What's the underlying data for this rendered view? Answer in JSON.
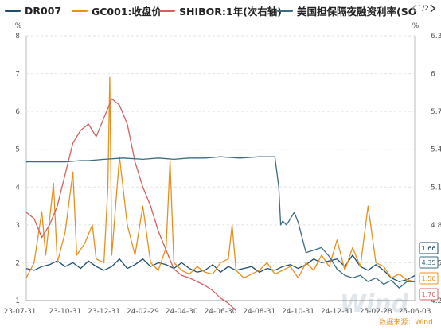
{
  "legend": {
    "items": [
      {
        "label": "DR007",
        "color": "#1d4e70"
      },
      {
        "label": "GC001:收盘价",
        "color": "#e8901e"
      },
      {
        "label": "SHIBOR:1年(次右轴)",
        "color": "#d46060"
      },
      {
        "label": "美国担保隔夜融资利率(SO",
        "color": "#3a6b80"
      }
    ],
    "page": "1/2"
  },
  "source": "数据来源：Wind",
  "colors": {
    "dr007": "#1d4e70",
    "gc001": "#e8901e",
    "shibor": "#d46060",
    "sofr": "#3a6b80"
  },
  "chart_data": {
    "type": "line",
    "left_axis": {
      "unit": "%",
      "ticks": [
        "8",
        "7",
        "6",
        "5",
        "4",
        "3",
        "2",
        "1"
      ],
      "ylim": [
        1,
        8
      ]
    },
    "right_axis": {
      "unit": "%",
      "ticks": [
        "6.3",
        "6",
        "5.7",
        "5.4",
        "5.1",
        "4.8",
        "4.5",
        "4.2"
      ],
      "ylim": [
        4.2,
        6.3
      ]
    },
    "x_ticks": [
      "23-07-31",
      "23-10-31",
      "23-12-31",
      "24-02-29",
      "24-04-30",
      "24-06-30",
      "24-08-31",
      "24-10-31",
      "24-12-31",
      "25-02-28",
      "25-06-03"
    ],
    "end_labels": [
      {
        "text": "1.66",
        "color": "#1d4e70"
      },
      {
        "text": "4.35",
        "color": "#3a6b80"
      },
      {
        "text": "1.50",
        "color": "#e8901e"
      },
      {
        "text": "1.70",
        "color": "#d46060"
      }
    ],
    "series": [
      {
        "name": "DR007",
        "axis": "left",
        "points": [
          [
            0,
            1.85
          ],
          [
            0.02,
            1.8
          ],
          [
            0.04,
            1.9
          ],
          [
            0.06,
            1.95
          ],
          [
            0.08,
            2.05
          ],
          [
            0.1,
            1.9
          ],
          [
            0.12,
            2.0
          ],
          [
            0.14,
            1.85
          ],
          [
            0.16,
            2.05
          ],
          [
            0.18,
            1.9
          ],
          [
            0.2,
            1.8
          ],
          [
            0.22,
            1.9
          ],
          [
            0.24,
            2.1
          ],
          [
            0.26,
            1.85
          ],
          [
            0.28,
            1.95
          ],
          [
            0.3,
            2.1
          ],
          [
            0.32,
            1.9
          ],
          [
            0.34,
            2.0
          ],
          [
            0.36,
            1.95
          ],
          [
            0.38,
            1.85
          ],
          [
            0.4,
            2.0
          ],
          [
            0.42,
            1.85
          ],
          [
            0.44,
            1.75
          ],
          [
            0.46,
            1.8
          ],
          [
            0.48,
            1.95
          ],
          [
            0.5,
            1.75
          ],
          [
            0.52,
            1.9
          ],
          [
            0.54,
            1.8
          ],
          [
            0.56,
            1.85
          ],
          [
            0.58,
            1.9
          ],
          [
            0.6,
            1.75
          ],
          [
            0.62,
            1.85
          ],
          [
            0.64,
            1.8
          ],
          [
            0.66,
            1.9
          ],
          [
            0.68,
            1.95
          ],
          [
            0.7,
            1.85
          ],
          [
            0.72,
            1.95
          ],
          [
            0.74,
            2.1
          ],
          [
            0.76,
            2.0
          ],
          [
            0.78,
            2.05
          ],
          [
            0.8,
            2.1
          ],
          [
            0.82,
            1.9
          ],
          [
            0.84,
            2.2
          ],
          [
            0.86,
            1.9
          ],
          [
            0.88,
            1.8
          ],
          [
            0.9,
            1.95
          ],
          [
            0.92,
            1.8
          ],
          [
            0.94,
            1.6
          ],
          [
            0.96,
            1.5
          ],
          [
            0.98,
            1.55
          ],
          [
            1.0,
            1.66
          ]
        ]
      },
      {
        "name": "GC001:收盘价",
        "axis": "left",
        "points": [
          [
            0,
            1.6
          ],
          [
            0.02,
            2.0
          ],
          [
            0.04,
            3.35
          ],
          [
            0.05,
            2.2
          ],
          [
            0.07,
            4.1
          ],
          [
            0.08,
            2.0
          ],
          [
            0.1,
            2.8
          ],
          [
            0.12,
            4.4
          ],
          [
            0.13,
            2.2
          ],
          [
            0.15,
            2.5
          ],
          [
            0.17,
            3.0
          ],
          [
            0.18,
            2.1
          ],
          [
            0.2,
            2.0
          ],
          [
            0.21,
            4.0
          ],
          [
            0.215,
            6.9
          ],
          [
            0.22,
            2.2
          ],
          [
            0.24,
            4.8
          ],
          [
            0.26,
            3.0
          ],
          [
            0.28,
            2.2
          ],
          [
            0.3,
            3.5
          ],
          [
            0.32,
            2.0
          ],
          [
            0.34,
            1.8
          ],
          [
            0.36,
            2.4
          ],
          [
            0.37,
            4.7
          ],
          [
            0.38,
            2.0
          ],
          [
            0.4,
            1.8
          ],
          [
            0.42,
            1.7
          ],
          [
            0.44,
            1.9
          ],
          [
            0.46,
            1.75
          ],
          [
            0.48,
            1.7
          ],
          [
            0.5,
            2.0
          ],
          [
            0.52,
            2.1
          ],
          [
            0.53,
            3.0
          ],
          [
            0.54,
            1.8
          ],
          [
            0.56,
            1.6
          ],
          [
            0.58,
            1.7
          ],
          [
            0.6,
            1.8
          ],
          [
            0.62,
            2.0
          ],
          [
            0.64,
            1.7
          ],
          [
            0.66,
            1.8
          ],
          [
            0.68,
            1.9
          ],
          [
            0.7,
            1.6
          ],
          [
            0.72,
            2.0
          ],
          [
            0.74,
            1.8
          ],
          [
            0.76,
            2.2
          ],
          [
            0.78,
            1.9
          ],
          [
            0.8,
            2.6
          ],
          [
            0.82,
            1.8
          ],
          [
            0.84,
            2.4
          ],
          [
            0.86,
            1.9
          ],
          [
            0.88,
            3.5
          ],
          [
            0.9,
            2.0
          ],
          [
            0.92,
            1.9
          ],
          [
            0.94,
            1.6
          ],
          [
            0.96,
            1.7
          ],
          [
            0.98,
            1.55
          ],
          [
            1.0,
            1.5
          ]
        ]
      },
      {
        "name": "SHIBOR:1年(次右轴)",
        "axis": "right",
        "points": [
          [
            0,
            4.9
          ],
          [
            0.02,
            4.85
          ],
          [
            0.04,
            4.7
          ],
          [
            0.06,
            4.8
          ],
          [
            0.08,
            4.95
          ],
          [
            0.1,
            5.2
          ],
          [
            0.12,
            5.45
          ],
          [
            0.14,
            5.55
          ],
          [
            0.16,
            5.6
          ],
          [
            0.18,
            5.5
          ],
          [
            0.2,
            5.65
          ],
          [
            0.22,
            5.8
          ],
          [
            0.24,
            5.75
          ],
          [
            0.26,
            5.6
          ],
          [
            0.28,
            5.3
          ],
          [
            0.3,
            5.1
          ],
          [
            0.32,
            4.95
          ],
          [
            0.34,
            4.75
          ],
          [
            0.36,
            4.6
          ],
          [
            0.38,
            4.45
          ],
          [
            0.4,
            4.4
          ],
          [
            0.42,
            4.38
          ],
          [
            0.44,
            4.35
          ],
          [
            0.46,
            4.32
          ],
          [
            0.48,
            4.28
          ],
          [
            0.5,
            4.22
          ],
          [
            0.52,
            4.18
          ],
          [
            0.54,
            4.12
          ]
        ]
      },
      {
        "name": "美国担保隔夜融资利率(SO",
        "axis": "right",
        "points": [
          [
            0,
            5.3
          ],
          [
            0.1,
            5.3
          ],
          [
            0.14,
            5.31
          ],
          [
            0.16,
            5.31
          ],
          [
            0.2,
            5.32
          ],
          [
            0.25,
            5.33
          ],
          [
            0.3,
            5.32
          ],
          [
            0.34,
            5.33
          ],
          [
            0.38,
            5.32
          ],
          [
            0.42,
            5.33
          ],
          [
            0.46,
            5.33
          ],
          [
            0.5,
            5.34
          ],
          [
            0.55,
            5.33
          ],
          [
            0.6,
            5.34
          ],
          [
            0.64,
            5.34
          ],
          [
            0.65,
            5.1
          ],
          [
            0.655,
            4.8
          ],
          [
            0.66,
            4.83
          ],
          [
            0.67,
            4.8
          ],
          [
            0.68,
            4.85
          ],
          [
            0.69,
            4.9
          ],
          [
            0.7,
            4.82
          ],
          [
            0.71,
            4.7
          ],
          [
            0.72,
            4.58
          ],
          [
            0.74,
            4.6
          ],
          [
            0.76,
            4.62
          ],
          [
            0.78,
            4.55
          ],
          [
            0.8,
            4.45
          ],
          [
            0.82,
            4.4
          ],
          [
            0.84,
            4.38
          ],
          [
            0.86,
            4.4
          ],
          [
            0.88,
            4.35
          ],
          [
            0.9,
            4.38
          ],
          [
            0.92,
            4.33
          ],
          [
            0.94,
            4.36
          ],
          [
            0.96,
            4.3
          ],
          [
            0.98,
            4.35
          ],
          [
            1.0,
            4.35
          ]
        ]
      }
    ]
  }
}
